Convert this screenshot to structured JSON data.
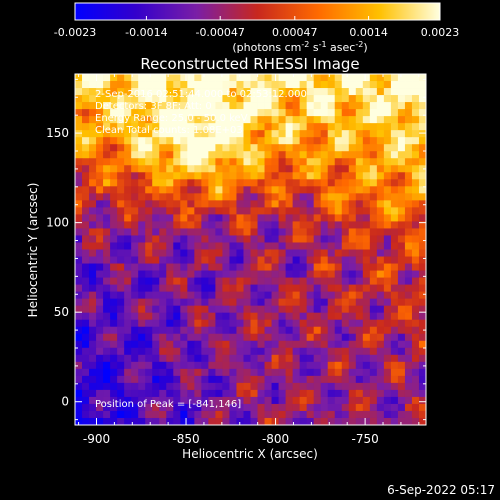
{
  "chart_data": {
    "type": "heatmap",
    "title": "Reconstructed RHESSI Image",
    "colorbar": {
      "ticks": [
        "-0.0023",
        "-0.0014",
        "-0.00047",
        "0.00047",
        "0.0014",
        "0.0023"
      ],
      "tick_values": [
        -0.0023,
        -0.0014,
        -0.00047,
        0.00047,
        0.0014,
        0.0023
      ],
      "range": [
        -0.0023,
        0.0023
      ],
      "unit_prefix": "(photons cm",
      "unit_sup1": "-2",
      "unit_mid": " s",
      "unit_sup2": "-1",
      "unit_mid2": " asec",
      "unit_sup3": "-2",
      "unit_suffix": ")",
      "colormap": [
        "#0000ff",
        "#3300cc",
        "#7a1ea6",
        "#c8281e",
        "#ff6a00",
        "#ffc000",
        "#ffffe0"
      ]
    },
    "xlabel": "Heliocentric X (arcsec)",
    "ylabel": "Heliocentric Y (arcsec)",
    "xlim": [
      -912,
      -716
    ],
    "ylim": [
      -13,
      183
    ],
    "x_ticks": [
      "-900",
      "-850",
      "-800",
      "-750"
    ],
    "x_tick_values": [
      -900,
      -850,
      -800,
      -750
    ],
    "y_ticks": [
      "0",
      "50",
      "100",
      "150"
    ],
    "y_tick_values": [
      0,
      50,
      100,
      150
    ],
    "annotations": [
      "2-Sep-2016 02:51:44.000 to 02:53:12.000",
      "Detectors: 3F 8F; Att: 0",
      "Energy Range: 25.0 - 50.0 keV",
      "Clean     Total counts: 1.08E+03"
    ],
    "peak_label": "Position of Peak = [-841,146]",
    "peak": [
      -841,
      146
    ],
    "grid": false
  },
  "footer": {
    "timestamp": "6-Sep-2022 05:17"
  },
  "colors": {
    "background": "#000000",
    "foreground": "#ffffff"
  }
}
